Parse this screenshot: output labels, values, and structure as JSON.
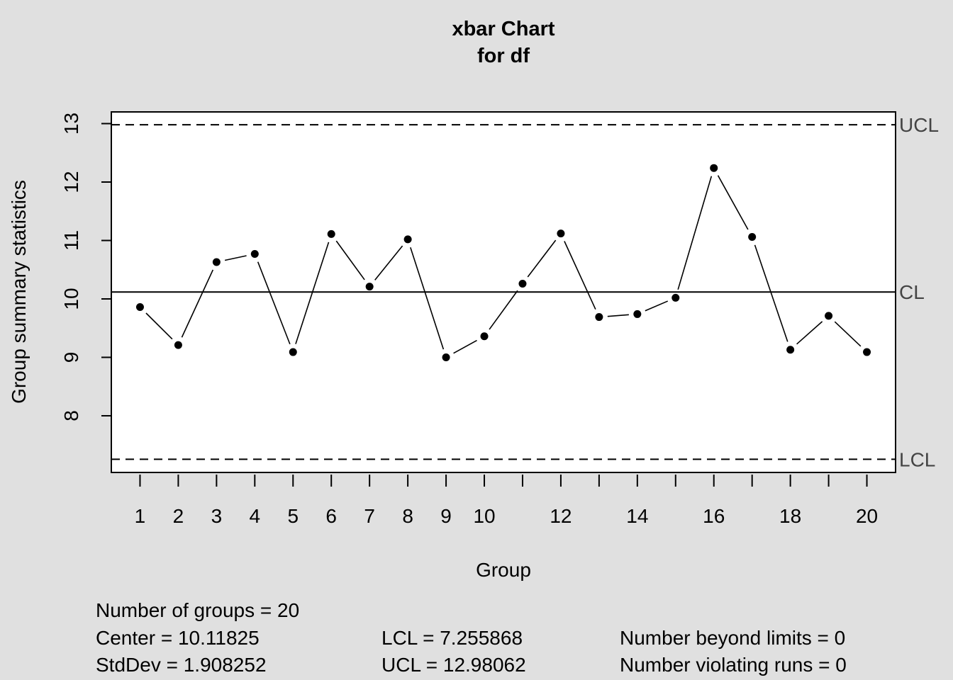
{
  "chart_data": {
    "type": "line",
    "title": "xbar Chart",
    "subtitle": "for df",
    "xlabel": "Group",
    "ylabel": "Group summary statistics",
    "x": [
      1,
      2,
      3,
      4,
      5,
      6,
      7,
      8,
      9,
      10,
      11,
      12,
      13,
      14,
      15,
      16,
      17,
      18,
      19,
      20
    ],
    "series": [
      {
        "values": [
          9.86,
          9.21,
          10.63,
          10.77,
          9.09,
          11.11,
          10.21,
          11.02,
          9.0,
          9.36,
          10.26,
          11.12,
          9.69,
          9.74,
          10.02,
          12.24,
          11.06,
          9.13,
          9.71,
          9.09
        ]
      }
    ],
    "xticks": [
      1,
      2,
      3,
      4,
      5,
      6,
      7,
      8,
      9,
      10,
      11,
      12,
      13,
      14,
      15,
      16,
      17,
      18,
      19,
      20
    ],
    "xtick_labels": [
      "1",
      "2",
      "3",
      "4",
      "5",
      "6",
      "7",
      "8",
      "9",
      "10",
      "",
      "12",
      "",
      "14",
      "",
      "16",
      "",
      "18",
      "",
      "20"
    ],
    "yticks": [
      8,
      9,
      10,
      11,
      12,
      13
    ],
    "xlim": [
      0.25,
      20.75
    ],
    "ylim": [
      7.03,
      13.2
    ],
    "limits": {
      "ucl": 12.98062,
      "cl": 10.11825,
      "lcl": 7.255868,
      "ucl_label": "UCL",
      "cl_label": "CL",
      "lcl_label": "LCL"
    },
    "grid": false,
    "legend": "none"
  },
  "stats": {
    "groups": "Number of groups = 20",
    "center": "Center = 10.11825",
    "stddev": "StdDev = 1.908252",
    "lcl": "LCL = 7.255868",
    "ucl": "UCL = 12.98062",
    "beyond": "Number beyond limits = 0",
    "runs": "Number violating runs = 0"
  }
}
